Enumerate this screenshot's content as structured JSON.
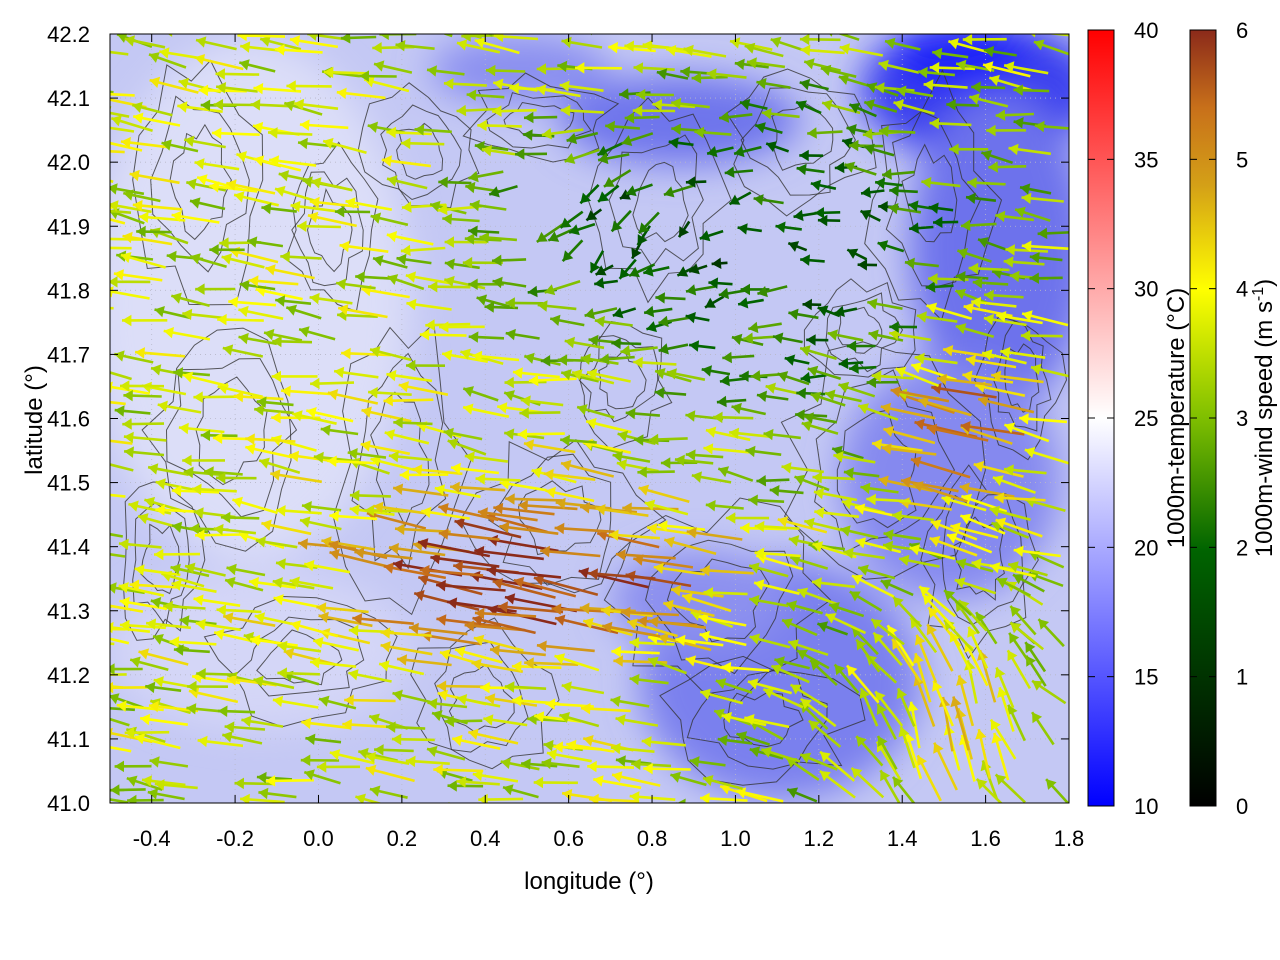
{
  "chart_data": {
    "type": "heatmap",
    "title": "",
    "xlabel": "longitude (°)",
    "ylabel": "latitude (°)",
    "xlim": [
      -0.5,
      1.8
    ],
    "ylim": [
      41.0,
      42.2
    ],
    "xticks": [
      "-0.4",
      "-0.2",
      "0.0",
      "0.2",
      "0.4",
      "0.6",
      "0.8",
      "1.0",
      "1.2",
      "1.4",
      "1.6",
      "1.8"
    ],
    "xtick_values": [
      -0.4,
      -0.2,
      0.0,
      0.2,
      0.4,
      0.6,
      0.8,
      1.0,
      1.2,
      1.4,
      1.6,
      1.8
    ],
    "yticks": [
      "41.0",
      "41.1",
      "41.2",
      "41.3",
      "41.4",
      "41.5",
      "41.6",
      "41.7",
      "41.8",
      "41.9",
      "42.0",
      "42.1",
      "42.2"
    ],
    "ytick_values": [
      41.0,
      41.1,
      41.2,
      41.3,
      41.4,
      41.5,
      41.6,
      41.7,
      41.8,
      41.9,
      42.0,
      42.1,
      42.2
    ],
    "grid": true,
    "layers": [
      "temperature field",
      "terrain contours",
      "wind vectors"
    ],
    "temperature_colorbar": {
      "label": "1000m-temperature (°C)",
      "range": [
        10,
        40
      ],
      "ticks": [
        "10",
        "15",
        "20",
        "25",
        "30",
        "35",
        "40"
      ],
      "tick_values": [
        10,
        15,
        20,
        25,
        30,
        35,
        40
      ],
      "colors": [
        "#0000ff",
        "#ffffff",
        "#ff0000"
      ]
    },
    "wind_colorbar": {
      "label_prefix": "1000m-wind speed (m s",
      "label_superscript": "-1",
      "label_suffix": ")",
      "range": [
        0,
        6
      ],
      "ticks": [
        "0",
        "1",
        "2",
        "3",
        "4",
        "5",
        "6"
      ],
      "tick_values": [
        0,
        1,
        2,
        3,
        4,
        5,
        6
      ],
      "colors": [
        "#000000",
        "#006400",
        "#7fbf00",
        "#ffff00",
        "#d4a017",
        "#c8701a",
        "#8b2a1a"
      ]
    },
    "temperature_regions": [
      {
        "region": "most of domain",
        "temperature_c": 19
      },
      {
        "region": "northeast corner, lon 1.4–1.8, lat 42.0–42.2",
        "temperature_c": 12
      },
      {
        "region": "north-central, lon 0.7–1.0, lat 42.0–42.1",
        "temperature_c": 14
      },
      {
        "region": "west, lon -0.5–0.4, lat 41.4–42.0",
        "temperature_c": 21
      }
    ],
    "wind_regimes": [
      {
        "region": "west half",
        "direction": "westward, slightly north",
        "speed_ms": 3.5
      },
      {
        "region": "centre, lon 0.3–0.9, lat 41.2–41.5",
        "direction": "west-northwest",
        "speed_ms": 5.8
      },
      {
        "region": "southeast, lon 1.2–1.8, lat 41.0–41.3",
        "direction": "north-northwest",
        "speed_ms": 4.5
      },
      {
        "region": "north-east, lon 0.9–1.8, lat 41.6–42.2",
        "direction": "westward",
        "speed_ms": 2.2
      }
    ]
  }
}
